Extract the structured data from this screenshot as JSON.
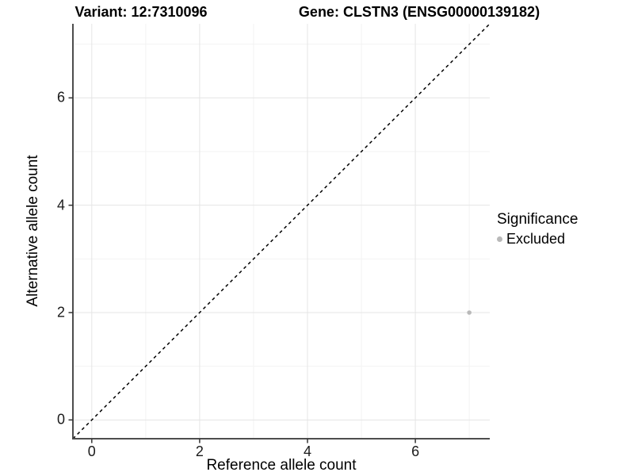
{
  "chart_data": {
    "type": "scatter",
    "titles": [
      "Variant: 12:7310096",
      "Gene: CLSTN3 (ENSG00000139182)"
    ],
    "xlabel": "Reference allele count",
    "ylabel": "Alternative allele count",
    "xlim": [
      -0.35,
      7.38
    ],
    "ylim": [
      -0.35,
      7.38
    ],
    "x_ticks": [
      0,
      2,
      4,
      6
    ],
    "y_ticks": [
      0,
      2,
      4,
      6
    ],
    "x_minor_ticks": [
      1,
      3,
      5,
      7
    ],
    "y_minor_ticks": [
      1,
      3,
      5,
      7
    ],
    "grid": "major and minor, light gray on white",
    "series": [
      {
        "name": "Excluded",
        "color": "#b9b9b9",
        "points": [
          {
            "x": 7,
            "y": 2
          }
        ]
      }
    ],
    "reference_line": {
      "kind": "identity",
      "slope": 1,
      "intercept": 0,
      "style": "dashed",
      "color": "#000000"
    },
    "legend": {
      "title": "Significance",
      "position": "right",
      "entries": [
        {
          "label": "Excluded",
          "color": "#b9b9b9"
        }
      ]
    }
  },
  "colors": {
    "background": "#ffffff",
    "grid_major": "#e5e5e5",
    "grid_minor": "#f3f3f3",
    "axis_line": "#4d4d4d",
    "tick_mark": "#333333",
    "point": "#b9b9b9",
    "text": "#000000"
  }
}
